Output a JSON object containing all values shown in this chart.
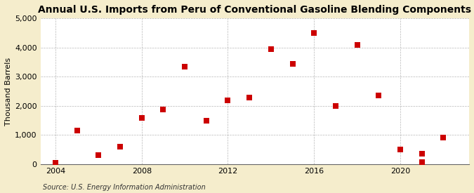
{
  "title": "Annual U.S. Imports from Peru of Conventional Gasoline Blending Components",
  "ylabel": "Thousand Barrels",
  "source": "Source: U.S. Energy Information Administration",
  "background_color": "#f5edcc",
  "plot_background_color": "#ffffff",
  "x_data": [
    2004,
    2005,
    2006,
    2007,
    2008,
    2009,
    2010,
    2011,
    2012,
    2013,
    2014,
    2015,
    2016,
    2017,
    2018,
    2019,
    2020,
    2021,
    2022
  ],
  "y_data": [
    50,
    1150,
    300,
    600,
    1580,
    1870,
    3350,
    1500,
    2200,
    2280,
    3950,
    3450,
    4500,
    2000,
    4100,
    2370,
    500,
    370,
    920
  ],
  "extra_x": [
    2021
  ],
  "extra_y": [
    80
  ],
  "marker_color": "#cc0000",
  "marker_size": 28,
  "ylim": [
    0,
    5000
  ],
  "xlim": [
    2003.3,
    2023.2
  ],
  "yticks": [
    0,
    1000,
    2000,
    3000,
    4000,
    5000
  ],
  "ytick_labels": [
    "0",
    "1,000",
    "2,000",
    "3,000",
    "4,000",
    "5,000"
  ],
  "xticks": [
    2004,
    2008,
    2012,
    2016,
    2020
  ],
  "grid_color": "#999999",
  "title_fontsize": 10,
  "axis_fontsize": 8,
  "source_fontsize": 7,
  "ylabel_fontsize": 8
}
